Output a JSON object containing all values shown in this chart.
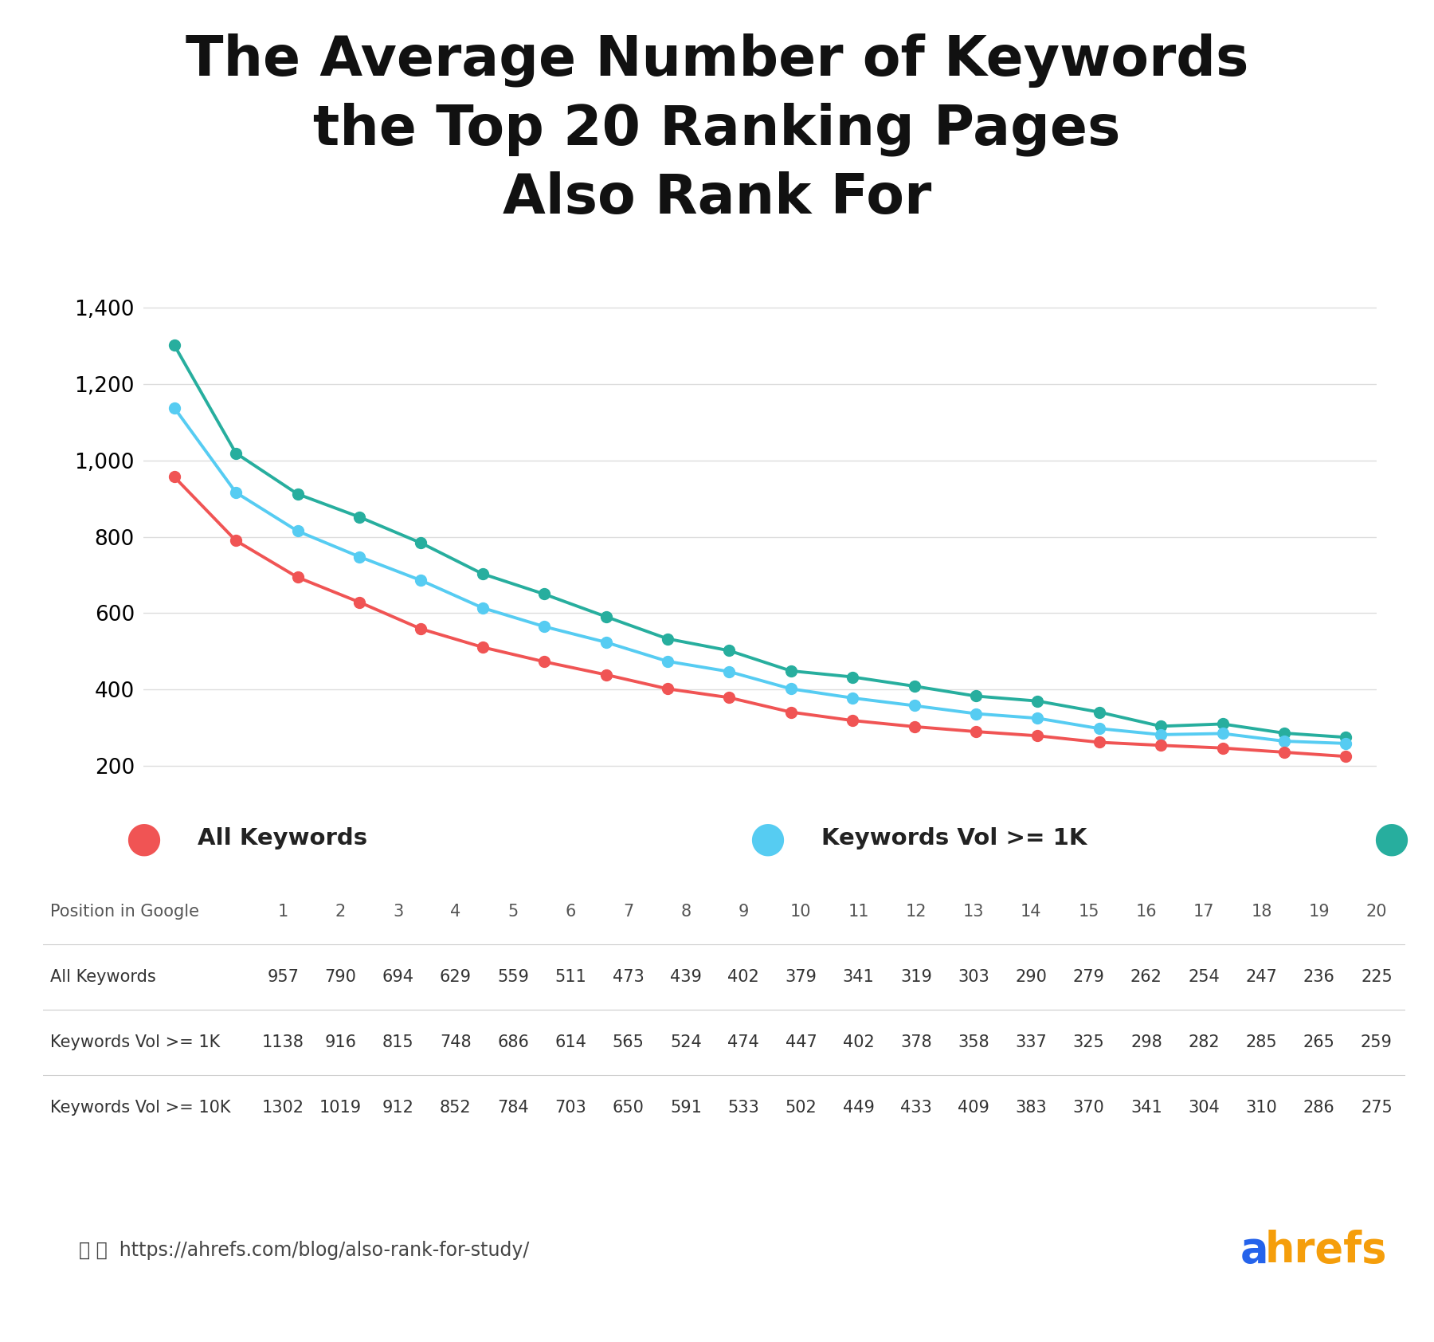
{
  "title": "The Average Number of Keywords\nthe Top 20 Ranking Pages\nAlso Rank For",
  "positions": [
    1,
    2,
    3,
    4,
    5,
    6,
    7,
    8,
    9,
    10,
    11,
    12,
    13,
    14,
    15,
    16,
    17,
    18,
    19,
    20
  ],
  "all_keywords": [
    957,
    790,
    694,
    629,
    559,
    511,
    473,
    439,
    402,
    379,
    341,
    319,
    303,
    290,
    279,
    262,
    254,
    247,
    236,
    225
  ],
  "vol_1k": [
    1138,
    916,
    815,
    748,
    686,
    614,
    565,
    524,
    474,
    447,
    402,
    378,
    358,
    337,
    325,
    298,
    282,
    285,
    265,
    259
  ],
  "vol_10k": [
    1302,
    1019,
    912,
    852,
    784,
    703,
    650,
    591,
    533,
    502,
    449,
    433,
    409,
    383,
    370,
    341,
    304,
    310,
    286,
    275
  ],
  "color_all": "#F05454",
  "color_1k": "#56CCF2",
  "color_10k": "#27AE9E",
  "line_width": 2.8,
  "marker_size": 10,
  "ylim_min": 150,
  "ylim_max": 1450,
  "yticks": [
    200,
    400,
    600,
    800,
    1000,
    1200,
    1400
  ],
  "legend_labels": [
    "All Keywords",
    "Keywords Vol >= 1K",
    "Keywords Vol >= 10K"
  ],
  "url": "https://ahrefs.com/blog/also-rank-for-study/",
  "bg_color": "#FFFFFF",
  "grid_color": "#DDDDDD",
  "title_fontsize": 50,
  "legend_fontsize": 21,
  "table_fontsize": 15,
  "ahrefs_blue": "#2563EB",
  "ahrefs_orange": "#F59E0B"
}
